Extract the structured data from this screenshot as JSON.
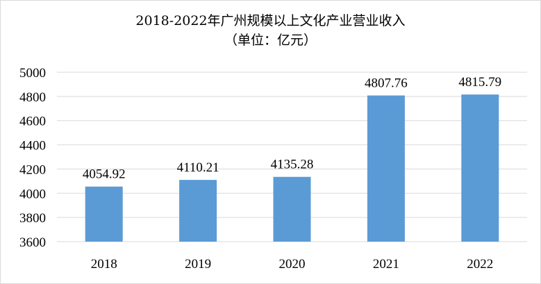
{
  "chart_data": {
    "type": "bar",
    "title": "2018-2022年广州规模以上文化产业营业收入",
    "subtitle": "（单位：亿元）",
    "categories": [
      "2018",
      "2019",
      "2020",
      "2021",
      "2022"
    ],
    "values": [
      4054.92,
      4110.21,
      4135.28,
      4807.76,
      4815.79
    ],
    "data_labels": [
      "4054.92",
      "4110.21",
      "4135.28",
      "4807.76",
      "4815.79"
    ],
    "ylim": [
      3600,
      5000
    ],
    "yticks": [
      3600,
      3800,
      4000,
      4200,
      4400,
      4600,
      4800,
      5000
    ],
    "grid": true,
    "bar_color": "#5b9bd5",
    "grid_color": "#d9d9d9",
    "xlabel": "",
    "ylabel": ""
  }
}
